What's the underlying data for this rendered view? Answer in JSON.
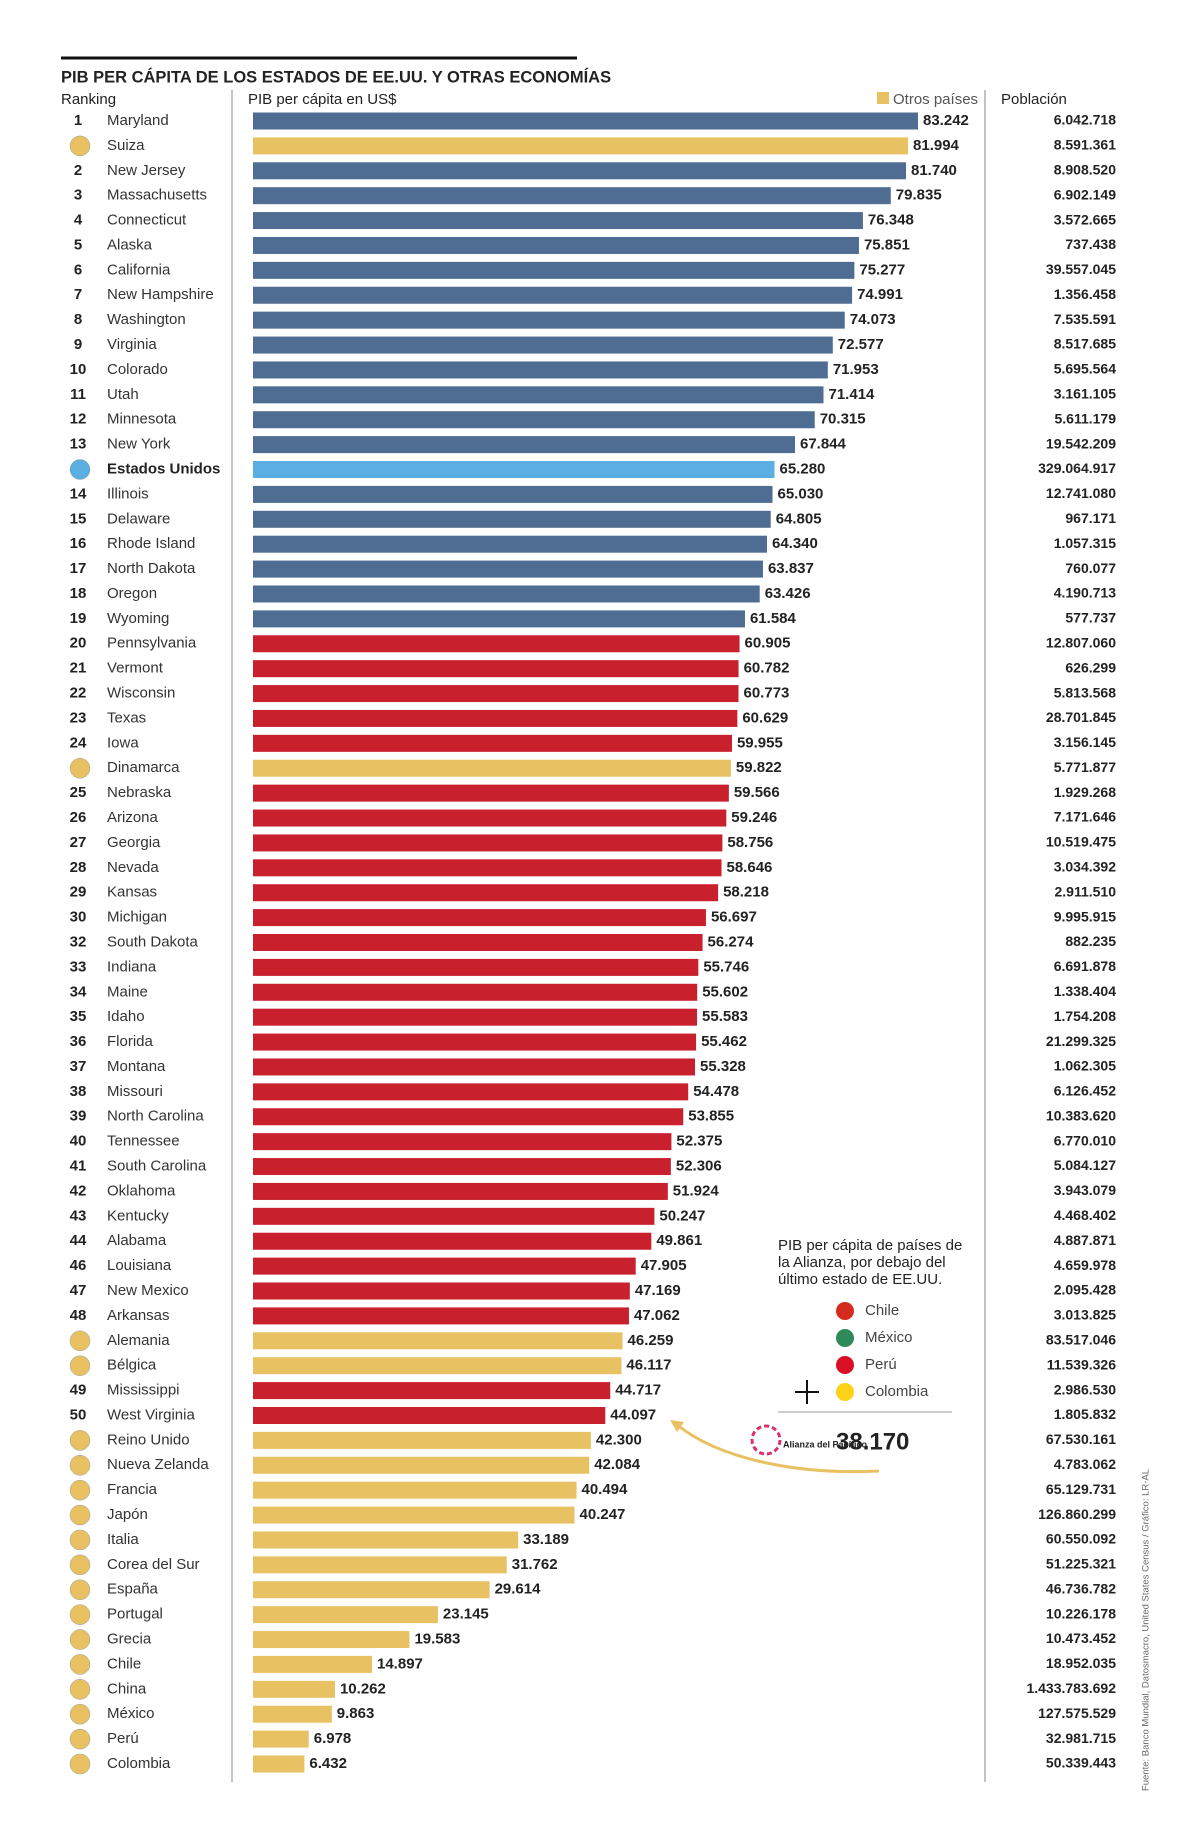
{
  "chart_data": {
    "type": "bar",
    "title": "PIB PER CÁPITA DE LOS ESTADOS DE EE.UU. Y OTRAS ECONOMÍAS",
    "rank_header": "Ranking",
    "value_header": "PIB per cápita en US$",
    "population_header": "Población",
    "legend": {
      "name": "Otros países",
      "color": "#e8c262"
    },
    "ranks": [
      1,
      null,
      2,
      3,
      4,
      5,
      6,
      7,
      8,
      9,
      10,
      11,
      12,
      13,
      null,
      14,
      15,
      16,
      17,
      18,
      19,
      20,
      21,
      22,
      23,
      24,
      null,
      25,
      26,
      27,
      28,
      29,
      30,
      32,
      33,
      34,
      35,
      36,
      37,
      38,
      39,
      40,
      41,
      42,
      43,
      44,
      46,
      47,
      48,
      null,
      null,
      49,
      50,
      null,
      null,
      null,
      null,
      null,
      null,
      null,
      null,
      null,
      null,
      null,
      null,
      null,
      null
    ],
    "categories": [
      "Maryland",
      "Suiza",
      "New Jersey",
      "Massachusetts",
      "Connecticut",
      "Alaska",
      "California",
      "New Hampshire",
      "Washington",
      "Virginia",
      "Colorado",
      "Utah",
      "Minnesota",
      "New York",
      "Estados Unidos",
      "Illinois",
      "Delaware",
      "Rhode Island",
      "North Dakota",
      "Oregon",
      "Wyoming",
      "Pennsylvania",
      "Vermont",
      "Wisconsin",
      "Texas",
      "Iowa",
      "Dinamarca",
      "Nebraska",
      "Arizona",
      "Georgia",
      "Nevada",
      "Kansas",
      "Michigan",
      "South Dakota",
      "Indiana",
      "Maine",
      "Idaho",
      "Florida",
      "Montana",
      "Missouri",
      "North Carolina",
      "Tennessee",
      "South Carolina",
      "Oklahoma",
      "Kentucky",
      "Alabama",
      "Louisiana",
      "New Mexico",
      "Arkansas",
      "Alemania",
      "Bélgica",
      "Mississippi",
      "West Virginia",
      "Reino Unido",
      "Nueva Zelanda",
      "Francia",
      "Japón",
      "Italia",
      "Corea del Sur",
      "España",
      "Portugal",
      "Grecia",
      "Chile",
      "China",
      "México",
      "Perú",
      "Colombia"
    ],
    "values": [
      83242,
      81994,
      81740,
      79835,
      76348,
      75851,
      75277,
      74991,
      74073,
      72577,
      71953,
      71414,
      70315,
      67844,
      65280,
      65030,
      64805,
      64340,
      63837,
      63426,
      61584,
      60905,
      60782,
      60773,
      60629,
      59955,
      59822,
      59566,
      59246,
      58756,
      58646,
      58218,
      56697,
      56274,
      55746,
      55602,
      55583,
      55462,
      55328,
      54478,
      53855,
      52375,
      52306,
      51924,
      50247,
      49861,
      47905,
      47169,
      47062,
      46259,
      46117,
      44717,
      44097,
      42300,
      42084,
      40494,
      40247,
      33189,
      31762,
      29614,
      23145,
      19583,
      14897,
      10262,
      9863,
      6978,
      6432
    ],
    "value_labels": [
      "83.242",
      "81.994",
      "81.740",
      "79.835",
      "76.348",
      "75.851",
      "75.277",
      "74.991",
      "74.073",
      "72.577",
      "71.953",
      "71.414",
      "70.315",
      "67.844",
      "65.280",
      "65.030",
      "64.805",
      "64.340",
      "63.837",
      "63.426",
      "61.584",
      "60.905",
      "60.782",
      "60.773",
      "60.629",
      "59.955",
      "59.822",
      "59.566",
      "59.246",
      "58.756",
      "58.646",
      "58.218",
      "56.697",
      "56.274",
      "55.746",
      "55.602",
      "55.583",
      "55.462",
      "55.328",
      "54.478",
      "53.855",
      "52.375",
      "52.306",
      "51.924",
      "50.247",
      "49.861",
      "47.905",
      "47.169",
      "47.062",
      "46.259",
      "46.117",
      "44.717",
      "44.097",
      "42.300",
      "42.084",
      "40.494",
      "40.247",
      "33.189",
      "31.762",
      "29.614",
      "23.145",
      "19.583",
      "14.897",
      "10.262",
      "9.863",
      "6.978",
      "6.432"
    ],
    "colors": [
      "#4f6d93",
      "#e8c262",
      "#4f6d93",
      "#4f6d93",
      "#4f6d93",
      "#4f6d93",
      "#4f6d93",
      "#4f6d93",
      "#4f6d93",
      "#4f6d93",
      "#4f6d93",
      "#4f6d93",
      "#4f6d93",
      "#4f6d93",
      "#5aaee2",
      "#4f6d93",
      "#4f6d93",
      "#4f6d93",
      "#4f6d93",
      "#4f6d93",
      "#4f6d93",
      "#c9202e",
      "#c9202e",
      "#c9202e",
      "#c9202e",
      "#c9202e",
      "#e8c262",
      "#c9202e",
      "#c9202e",
      "#c9202e",
      "#c9202e",
      "#c9202e",
      "#c9202e",
      "#c9202e",
      "#c9202e",
      "#c9202e",
      "#c9202e",
      "#c9202e",
      "#c9202e",
      "#c9202e",
      "#c9202e",
      "#c9202e",
      "#c9202e",
      "#c9202e",
      "#c9202e",
      "#c9202e",
      "#c9202e",
      "#c9202e",
      "#c9202e",
      "#e8c262",
      "#e8c262",
      "#c9202e",
      "#c9202e",
      "#e8c262",
      "#e8c262",
      "#e8c262",
      "#e8c262",
      "#e8c262",
      "#e8c262",
      "#e8c262",
      "#e8c262",
      "#e8c262",
      "#e8c262",
      "#e8c262",
      "#e8c262",
      "#e8c262",
      "#e8c262"
    ],
    "population": [
      "6.042.718",
      "8.591.361",
      "8.908.520",
      "6.902.149",
      "3.572.665",
      "737.438",
      "39.557.045",
      "1.356.458",
      "7.535.591",
      "8.517.685",
      "5.695.564",
      "3.161.105",
      "5.611.179",
      "19.542.209",
      "329.064.917",
      "12.741.080",
      "967.171",
      "1.057.315",
      "760.077",
      "4.190.713",
      "577.737",
      "12.807.060",
      "626.299",
      "5.813.568",
      "28.701.845",
      "3.156.145",
      "5.771.877",
      "1.929.268",
      "7.171.646",
      "10.519.475",
      "3.034.392",
      "2.911.510",
      "9.995.915",
      "882.235",
      "6.691.878",
      "1.338.404",
      "1.754.208",
      "21.299.325",
      "1.062.305",
      "6.126.452",
      "10.383.620",
      "6.770.010",
      "5.084.127",
      "3.943.079",
      "4.468.402",
      "4.887.871",
      "4.659.978",
      "2.095.428",
      "3.013.825",
      "83.517.046",
      "11.539.326",
      "2.986.530",
      "1.805.832",
      "67.530.161",
      "4.783.062",
      "65.129.731",
      "126.860.299",
      "60.550.092",
      "51.225.321",
      "46.736.782",
      "10.226.178",
      "10.473.452",
      "18.952.035",
      "1.433.783.692",
      "127.575.529",
      "32.981.715",
      "50.339.443"
    ],
    "annotation": {
      "lines": [
        "PIB per cápita de países de",
        "la Alianza, por debajo del",
        "último estado de EE.UU."
      ],
      "countries": [
        "Chile",
        "México",
        "Perú",
        "Colombia"
      ],
      "logo": "Alianza del Pacífico",
      "figure": "38.170"
    },
    "source": "Fuente: Banco Mundial, Datosmacro, United States Census / Gráfico: LR-AL"
  }
}
